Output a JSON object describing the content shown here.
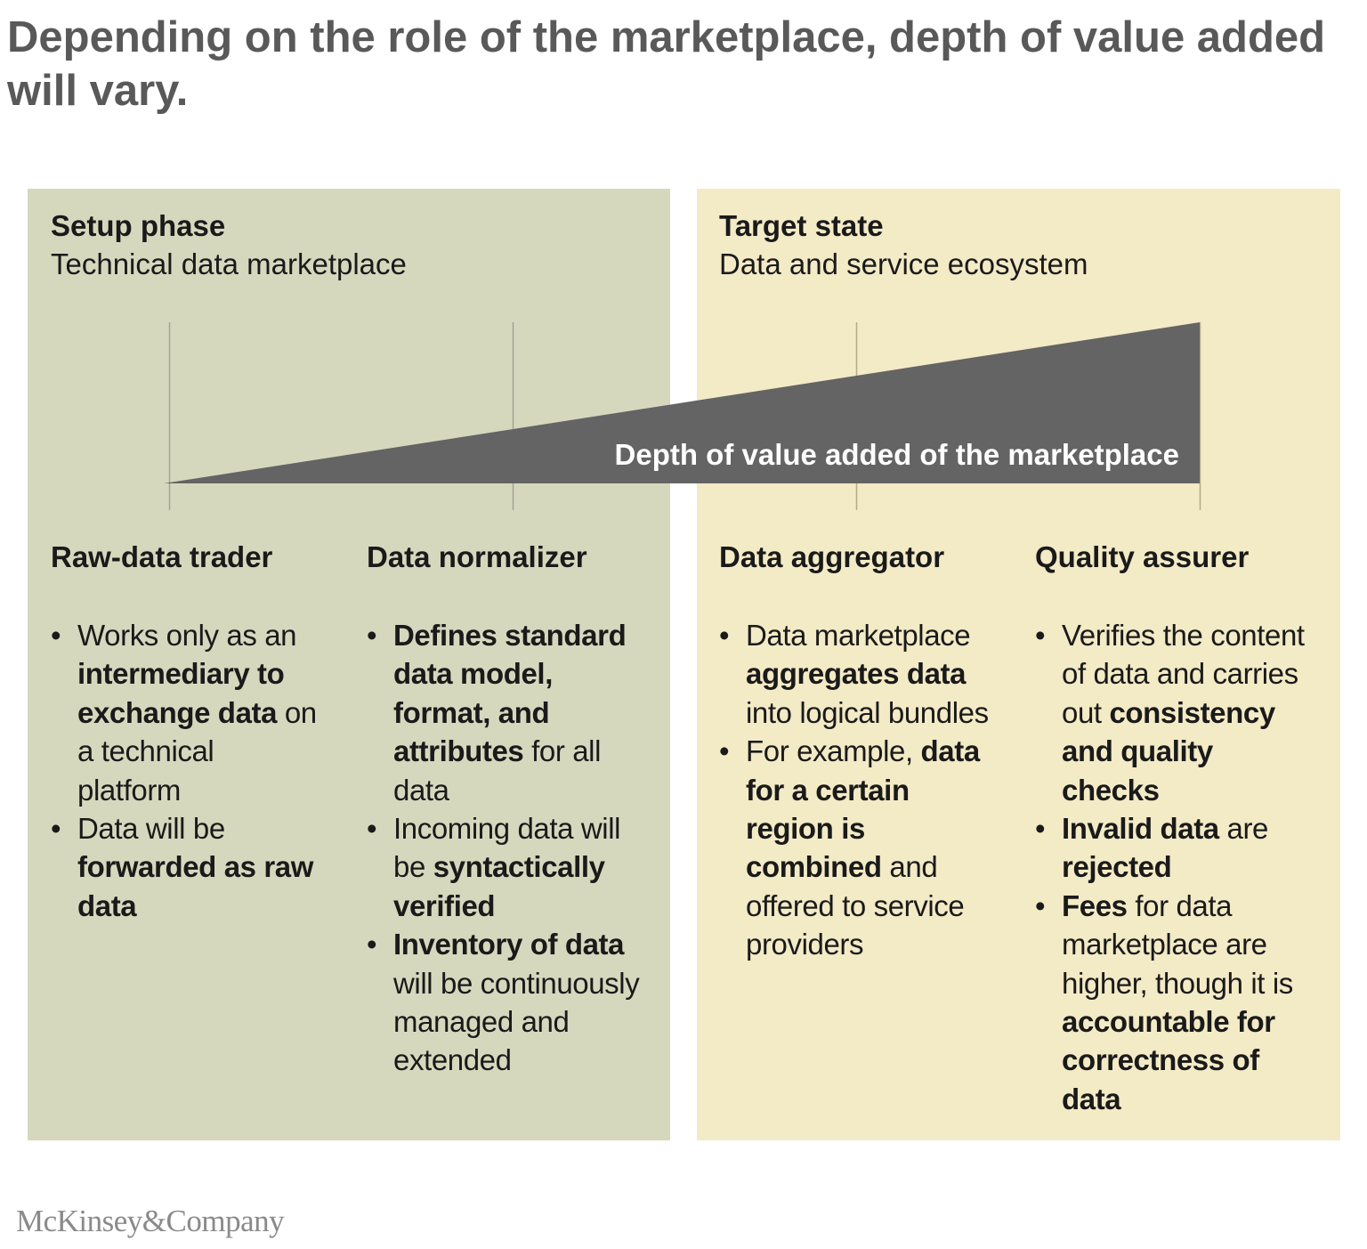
{
  "title": "Depending on the role of the marketplace, depth of value added will vary.",
  "phases": {
    "setup": {
      "title": "Setup phase",
      "subtitle": "Technical data marketplace"
    },
    "target": {
      "title": "Target state",
      "subtitle": "Data and service ecosystem"
    }
  },
  "wedge_label": "Depth of value added of the marketplace",
  "colors": {
    "setup_panel": "#d6d8be",
    "target_panel": "#f3eac6",
    "wedge": "#646464",
    "title": "#595959"
  },
  "roles": [
    {
      "title": "Raw-data trader",
      "bullets": [
        [
          [
            "Works only as an ",
            false
          ],
          [
            "intermediary to exchange data",
            true
          ],
          [
            " on a technical platform",
            false
          ]
        ],
        [
          [
            "Data will be ",
            false
          ],
          [
            "forwarded as raw data",
            true
          ]
        ]
      ]
    },
    {
      "title": "Data normalizer",
      "bullets": [
        [
          [
            "Defines standard data model, format, and attributes",
            true
          ],
          [
            " for all data",
            false
          ]
        ],
        [
          [
            "Incoming data will be ",
            false
          ],
          [
            "syntactically verified",
            true
          ]
        ],
        [
          [
            "Inventory of data",
            true
          ],
          [
            " will be continuously managed and extended",
            false
          ]
        ]
      ]
    },
    {
      "title": "Data aggregator",
      "bullets": [
        [
          [
            "Data marketplace ",
            false
          ],
          [
            "aggregates data",
            true
          ],
          [
            " into logical bundles",
            false
          ]
        ],
        [
          [
            "For example, ",
            false
          ],
          [
            "data for a certain region is combined",
            true
          ],
          [
            " and offered to service providers",
            false
          ]
        ]
      ]
    },
    {
      "title": "Quality assurer",
      "bullets": [
        [
          [
            "Verifies the content of data and carries out ",
            false
          ],
          [
            "consistency and quality checks",
            true
          ]
        ],
        [
          [
            "Invalid data",
            true
          ],
          [
            " are ",
            false
          ],
          [
            "rejected",
            true
          ]
        ],
        [
          [
            "Fees",
            true
          ],
          [
            " for data marketplace are higher, though it is ",
            false
          ],
          [
            "accountable for correctness of data",
            true
          ]
        ]
      ]
    }
  ],
  "logo": "McKinsey&Company"
}
